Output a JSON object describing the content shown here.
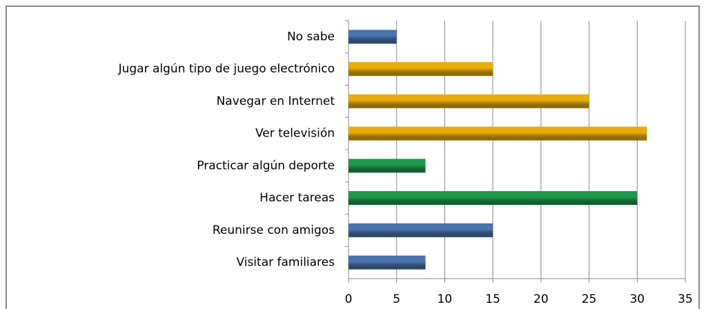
{
  "chart_data": {
    "type": "bar",
    "orientation": "horizontal",
    "categories": [
      "No sabe",
      "Jugar algún tipo de juego electrónico",
      "Navegar en Internet",
      "Ver televisión",
      "Practicar algún deporte",
      "Hacer tareas",
      "Reunirse con amigos",
      "Visitar familiares"
    ],
    "values": [
      5,
      15,
      25,
      31,
      8,
      30,
      15,
      8
    ],
    "colors": [
      "#4a74ad",
      "#e8ac0c",
      "#e8ac0c",
      "#e8ac0c",
      "#1f9a4a",
      "#1f9a4a",
      "#4a74ad",
      "#4a74ad"
    ],
    "xlim": [
      0,
      35
    ],
    "xticks": [
      0,
      5,
      10,
      15,
      20,
      25,
      30,
      35
    ],
    "grid": true
  }
}
